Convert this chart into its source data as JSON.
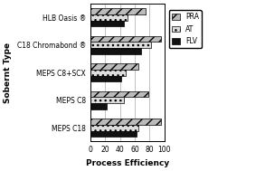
{
  "categories": [
    "MEPS C18",
    "MEPS C8",
    "MEPS C8+SCX",
    "C18 Chromabond ®",
    "HLB Oasis ®"
  ],
  "series": {
    "PRA": [
      95,
      78,
      65,
      95,
      75
    ],
    "AT": [
      65,
      45,
      48,
      82,
      50
    ],
    "FLV": [
      62,
      22,
      42,
      68,
      45
    ]
  },
  "bar_colors": {
    "PRA": "#bbbbbb",
    "AT": "#dddddd",
    "FLV": "#111111"
  },
  "bar_hatches": {
    "PRA": "///",
    "AT": "...",
    "FLV": ""
  },
  "xlabel": "Process Efficiency",
  "ylabel": "Sobernt Type",
  "xlim": [
    0,
    100
  ],
  "xticks": [
    0,
    20,
    40,
    60,
    80,
    100
  ],
  "legend_labels": [
    "PRA",
    "AT",
    "FLV"
  ],
  "bar_height": 0.22,
  "background_color": "#ffffff",
  "grid_color": "#aaaaaa"
}
